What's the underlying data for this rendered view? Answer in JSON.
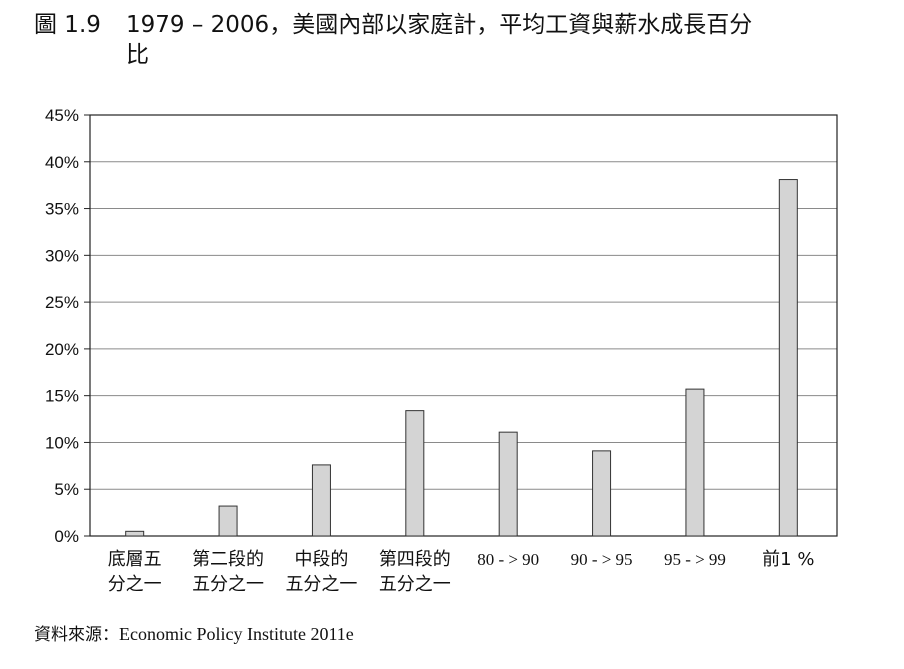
{
  "figure": {
    "number": "圖 1.9",
    "title_line1": "1979 – 2006，美國內部以家庭計，平均工資與薪水成長百分",
    "title_line2": "比"
  },
  "chart_data": {
    "type": "bar",
    "categories": [
      [
        "底層五",
        "分之一"
      ],
      [
        "第二段的",
        "五分之一"
      ],
      [
        "中段的",
        "五分之一"
      ],
      [
        "第四段的",
        "五分之一"
      ],
      [
        "80 - > 90"
      ],
      [
        "90 - > 95"
      ],
      [
        "95 - > 99"
      ],
      [
        "前1 %"
      ]
    ],
    "values": [
      0.5,
      3.2,
      7.6,
      13.4,
      11.1,
      9.1,
      15.7,
      38.1
    ],
    "ylim": [
      0,
      45
    ],
    "yticks": [
      0,
      5,
      10,
      15,
      20,
      25,
      30,
      35,
      40,
      45
    ],
    "ytick_labels": [
      "0%",
      "5%",
      "10%",
      "15%",
      "20%",
      "25%",
      "30%",
      "35%",
      "40%",
      "45%"
    ],
    "grid": true,
    "bar_color": "#d4d4d4",
    "bar_stroke": "#333333"
  },
  "source": {
    "label": "資料來源：",
    "text": "Economic Policy Institute 2011e"
  }
}
